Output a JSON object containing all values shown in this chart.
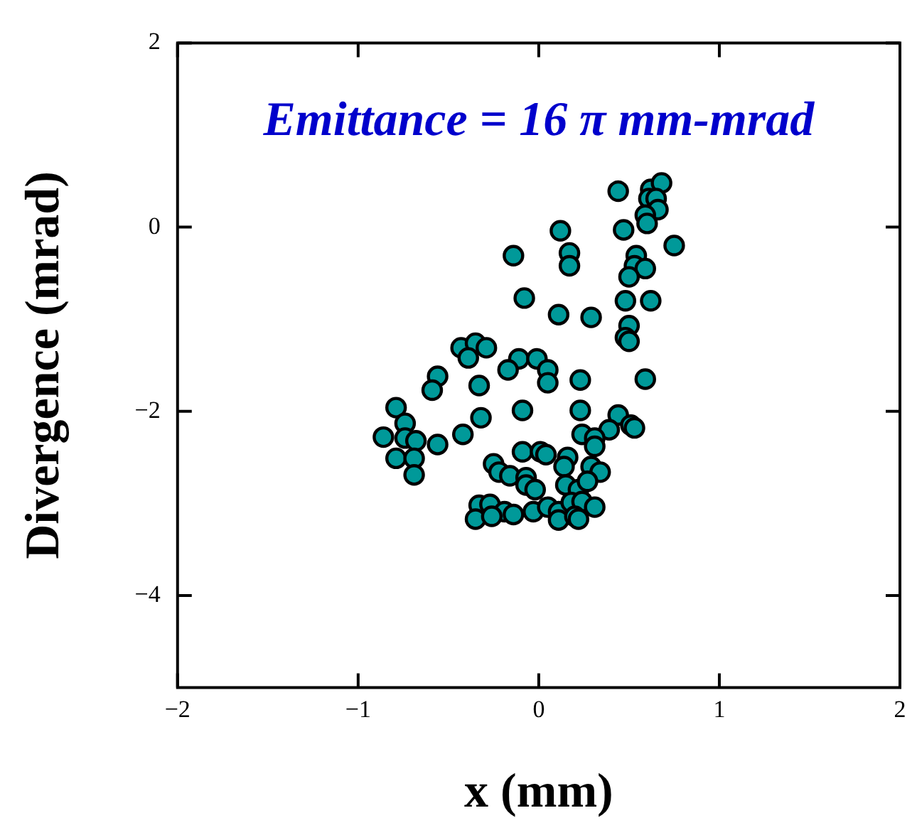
{
  "chart_data": {
    "type": "scatter",
    "xlabel": "x (mm)",
    "ylabel": "Divergence (mrad)",
    "annotations": [
      "Emittance = 16 π mm-mrad"
    ],
    "xlim": [
      -2,
      2
    ],
    "xticks": [
      -2,
      -1,
      0,
      1,
      2
    ],
    "ylim": [
      -5,
      2
    ],
    "yticks": [
      2,
      0,
      -2,
      -4
    ],
    "grid": false,
    "legend": false,
    "marker": "circle",
    "series": [
      {
        "color": "#009999",
        "x": [
          0.44,
          0.62,
          0.68,
          0.61,
          0.65,
          0.66,
          0.59,
          0.6,
          0.47,
          0.75,
          0.54,
          0.53,
          0.59,
          0.5,
          0.48,
          0.62,
          0.5,
          0.48,
          0.5,
          0.59,
          0.12,
          -0.14,
          0.17,
          0.17,
          -0.08,
          0.11,
          0.29,
          -0.43,
          -0.35,
          -0.29,
          -0.39,
          -0.11,
          -0.01,
          -0.17,
          0.05,
          -0.56,
          -0.59,
          -0.33,
          0.05,
          0.23,
          -0.79,
          -0.09,
          0.23,
          0.44,
          -0.74,
          -0.32,
          0.39,
          0.51,
          -0.86,
          -0.74,
          -0.68,
          -0.56,
          -0.42,
          0.24,
          0.31,
          0.31,
          -0.79,
          -0.69,
          -0.09,
          0.01,
          0.04,
          0.16,
          -0.69,
          -0.25,
          -0.22,
          -0.16,
          0.14,
          0.29,
          0.34,
          -0.07,
          -0.07,
          -0.02,
          0.15,
          0.22,
          0.27,
          -0.33,
          -0.27,
          -0.19,
          -0.14,
          -0.35,
          -0.26,
          -0.03,
          0.05,
          0.11,
          0.18,
          0.24,
          0.31,
          0.11,
          0.2,
          0.22,
          0.53
        ],
        "values": [
          0.39,
          0.41,
          0.48,
          0.31,
          0.31,
          0.19,
          0.13,
          0.04,
          -0.03,
          -0.2,
          -0.31,
          -0.42,
          -0.45,
          -0.54,
          -0.8,
          -0.8,
          -1.07,
          -1.2,
          -1.24,
          -1.65,
          -0.04,
          -0.31,
          -0.28,
          -0.42,
          -0.77,
          -0.95,
          -0.98,
          -1.31,
          -1.26,
          -1.31,
          -1.42,
          -1.43,
          -1.43,
          -1.55,
          -1.55,
          -1.62,
          -1.77,
          -1.72,
          -1.69,
          -1.66,
          -1.96,
          -1.99,
          -1.99,
          -2.04,
          -2.13,
          -2.07,
          -2.2,
          -2.15,
          -2.28,
          -2.29,
          -2.32,
          -2.36,
          -2.25,
          -2.25,
          -2.29,
          -2.38,
          -2.51,
          -2.51,
          -2.44,
          -2.44,
          -2.47,
          -2.5,
          -2.69,
          -2.57,
          -2.66,
          -2.7,
          -2.6,
          -2.6,
          -2.66,
          -2.72,
          -2.8,
          -2.85,
          -2.8,
          -2.85,
          -2.76,
          -3.02,
          -3.01,
          -3.09,
          -3.12,
          -3.17,
          -3.14,
          -3.09,
          -3.04,
          -3.09,
          -2.99,
          -2.98,
          -3.04,
          -3.18,
          -3.14,
          -3.17,
          -2.18
        ]
      }
    ]
  }
}
